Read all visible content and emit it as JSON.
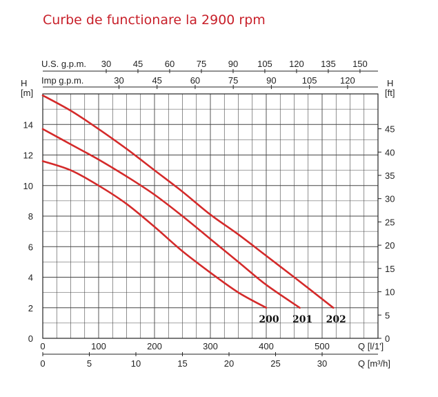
{
  "title": "Curbe de functionare la 2900 rpm",
  "colors": {
    "title": "#c8202a",
    "curve": "#d42a2a",
    "grid": "#444444"
  },
  "chart_data": {
    "type": "line",
    "title": "Curbe de functionare la 2900 rpm",
    "x_axes": {
      "primary": {
        "label": "Q [l/1']",
        "min": 0,
        "max": 600,
        "ticks": [
          0,
          100,
          200,
          300,
          400,
          500
        ]
      },
      "secondary": {
        "label": "Q [m³/h]",
        "min": 0,
        "max": 36,
        "ticks": [
          0,
          5,
          10,
          15,
          20,
          25,
          30
        ]
      },
      "top_us": {
        "label": "U.S. g.p.m.",
        "ticks": [
          30,
          45,
          60,
          75,
          90,
          105,
          120,
          135,
          150
        ]
      },
      "top_imp": {
        "label": "Imp g.p.m.",
        "ticks": [
          30,
          45,
          60,
          75,
          90,
          105,
          120
        ]
      }
    },
    "y_axes": {
      "left": {
        "label": "H",
        "unit": "[m]",
        "min": 0,
        "max": 16,
        "ticks": [
          0,
          2,
          4,
          6,
          8,
          10,
          12,
          14
        ]
      },
      "right": {
        "label": "H",
        "unit": "[ft]",
        "ticks": [
          0,
          5,
          10,
          15,
          20,
          25,
          30,
          35,
          40,
          45
        ]
      }
    },
    "grid": true,
    "series": [
      {
        "name": "200",
        "x": [
          0,
          50,
          100,
          150,
          200,
          250,
          300,
          350,
          400
        ],
        "y": [
          11.6,
          11.0,
          10.0,
          8.8,
          7.3,
          5.7,
          4.3,
          3.0,
          2.0
        ]
      },
      {
        "name": "201",
        "x": [
          0,
          50,
          100,
          150,
          200,
          250,
          300,
          350,
          400,
          460
        ],
        "y": [
          13.7,
          12.7,
          11.7,
          10.6,
          9.4,
          8.0,
          6.5,
          5.0,
          3.5,
          2.0
        ]
      },
      {
        "name": "202",
        "x": [
          0,
          50,
          100,
          150,
          200,
          250,
          300,
          350,
          400,
          450,
          520
        ],
        "y": [
          15.9,
          14.9,
          13.7,
          12.4,
          11.0,
          9.6,
          8.1,
          6.8,
          5.4,
          4.0,
          2.0
        ]
      }
    ]
  }
}
